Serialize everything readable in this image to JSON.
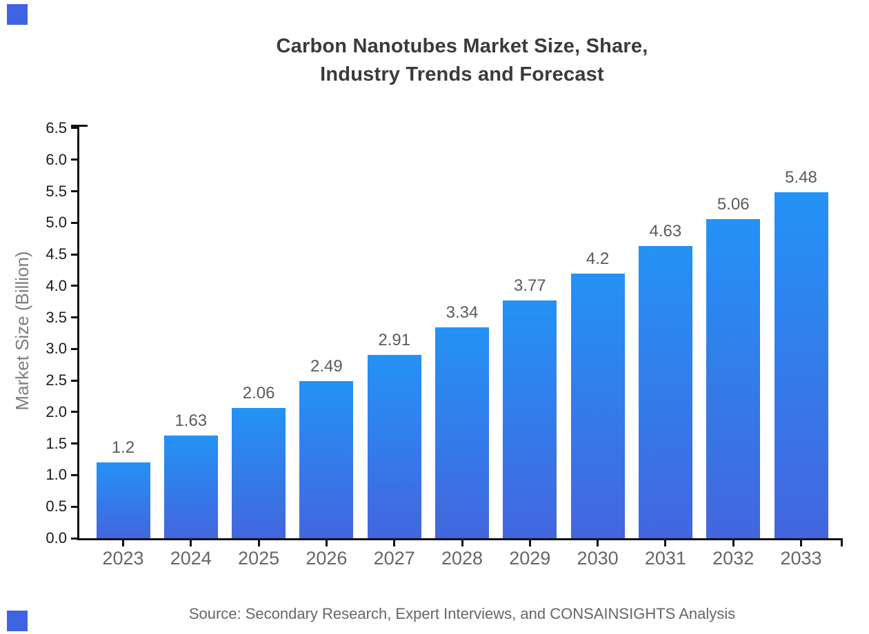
{
  "page": {
    "background": "#ffffff"
  },
  "header": {
    "title_line1": "Carbon Nanotubes Market Size, Share,",
    "title_line2": "Industry Trends and Forecast"
  },
  "footer": {
    "source": "Source: Secondary Research, Expert Interviews, and CONSAINSIGHTS Analysis"
  },
  "decor": {
    "corner_square_color": "#3E63E3"
  },
  "chart_data": {
    "type": "bar",
    "title": "Carbon Nanotubes Market Size, Share, Industry Trends and Forecast",
    "xlabel": "",
    "ylabel": "Market Size (Billion)",
    "categories": [
      "2023",
      "2024",
      "2025",
      "2026",
      "2027",
      "2028",
      "2029",
      "2030",
      "2031",
      "2032",
      "2033"
    ],
    "values": [
      1.2,
      1.63,
      2.06,
      2.49,
      2.91,
      3.34,
      3.77,
      4.2,
      4.63,
      5.06,
      5.48
    ],
    "value_labels": [
      "1.2",
      "1.63",
      "2.06",
      "2.49",
      "2.91",
      "3.34",
      "3.77",
      "4.2",
      "4.63",
      "5.06",
      "5.48"
    ],
    "ylim": [
      0,
      6.5
    ],
    "ytick_step": 0.5,
    "ytick_labels": [
      "0.0",
      "0.5",
      "1.0",
      "1.5",
      "2.0",
      "2.5",
      "3.0",
      "3.5",
      "4.0",
      "4.5",
      "5.0",
      "5.5",
      "6.0",
      "6.5"
    ],
    "grid": false,
    "legend": "none",
    "colors": {
      "bar_gradient_top": "#2492F5",
      "bar_gradient_bottom": "#4366DE",
      "axis": "#111111",
      "ytick_text": "#1a1a1a",
      "xtick_text": "#666666",
      "value_label_text": "#5a5a5a",
      "title_text": "#3a3a3a",
      "ylabel_text": "#7e7e7e",
      "source_text": "#666666"
    }
  }
}
